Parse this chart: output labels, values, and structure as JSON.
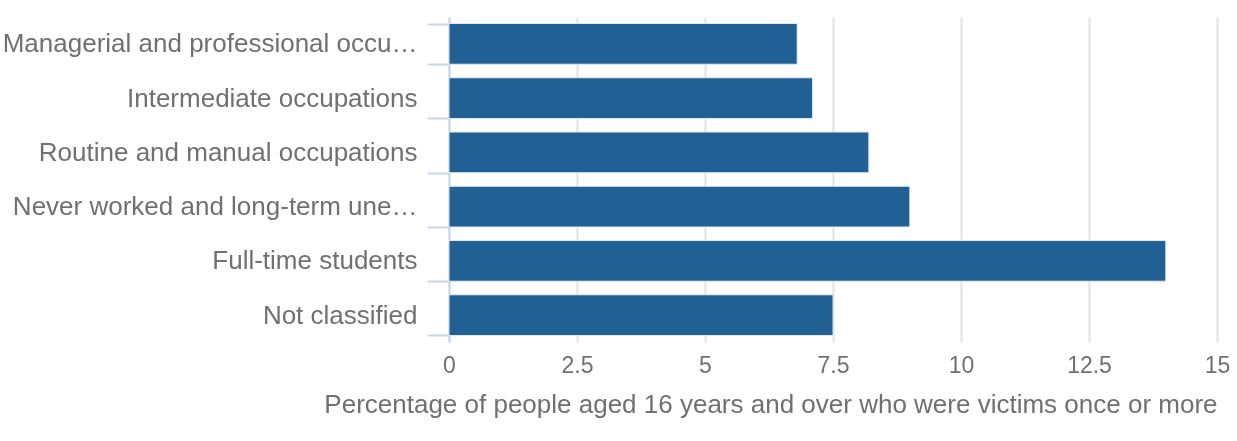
{
  "chart_data": {
    "type": "bar",
    "orientation": "horizontal",
    "categories": [
      "Managerial and professional occu…",
      "Intermediate occupations",
      "Routine and manual occupations",
      "Never worked and long-term une…",
      "Full-time students",
      "Not classified"
    ],
    "values": [
      6.8,
      7.1,
      8.2,
      9.0,
      14.0,
      7.5
    ],
    "color": "#206095",
    "xlabel": "Percentage of people aged 16 years and over who were victims once or more",
    "xlim": [
      0,
      15
    ],
    "xticks": [
      0,
      2.5,
      5,
      7.5,
      10,
      12.5,
      15
    ],
    "grid": "x"
  }
}
